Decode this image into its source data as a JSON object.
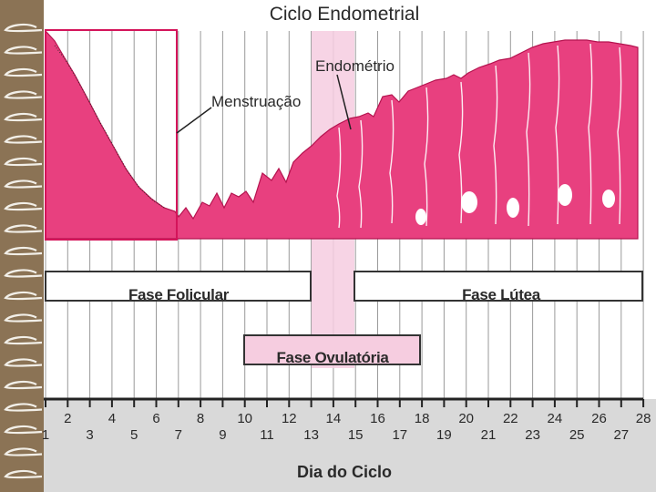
{
  "title": "Ciclo Endometrial",
  "labels": {
    "endometrium": "Endométrio",
    "menstruation": "Menstruação"
  },
  "phases": {
    "follicular": "Fase Folicular",
    "luteal": "Fase Lútea",
    "ovulatory": "Fase Ovulatória"
  },
  "x_axis": {
    "label": "Dia do Ciclo",
    "days": [
      "1",
      "2",
      "3",
      "4",
      "5",
      "6",
      "7",
      "8",
      "9",
      "10",
      "11",
      "12",
      "13",
      "14",
      "15",
      "16",
      "17",
      "18",
      "19",
      "20",
      "21",
      "22",
      "23",
      "24",
      "25",
      "26",
      "27",
      "28"
    ]
  },
  "colors": {
    "tissue": "#e8407f",
    "tissue_dark": "#b5134f",
    "ovulation_band": "#f6cde0",
    "bottom_band": "#d9d9d9",
    "left_border": "#8b7355"
  },
  "icons": {
    "left_border": "spiral-binding-strip"
  }
}
